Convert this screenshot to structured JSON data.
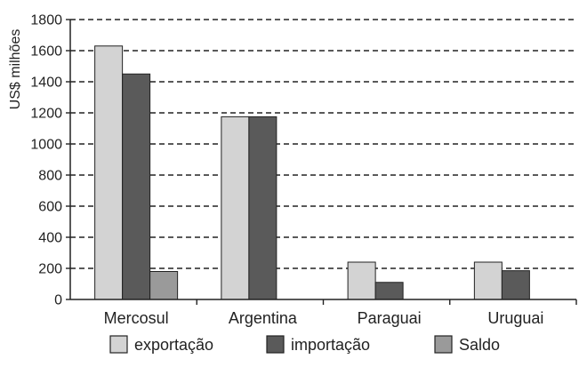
{
  "chart_data": {
    "type": "bar",
    "title": "",
    "xlabel": "",
    "ylabel": "US$ milhões",
    "ylim": [
      0,
      1800
    ],
    "yticks": [
      0,
      200,
      400,
      600,
      800,
      1000,
      1200,
      1400,
      1600,
      1800
    ],
    "grid": true,
    "legend_position": "bottom",
    "categories": [
      "Mercosul",
      "Argentina",
      "Paraguai",
      "Uruguai"
    ],
    "series": [
      {
        "name": "exportação",
        "values": [
          1630,
          1175,
          240,
          240
        ],
        "color": "#d3d3d3"
      },
      {
        "name": "importação",
        "values": [
          1450,
          1175,
          110,
          185
        ],
        "color": "#5a5a5a"
      },
      {
        "name": "Saldo",
        "values": [
          180,
          0,
          0,
          0
        ],
        "color": "#9a9a9a"
      }
    ]
  }
}
